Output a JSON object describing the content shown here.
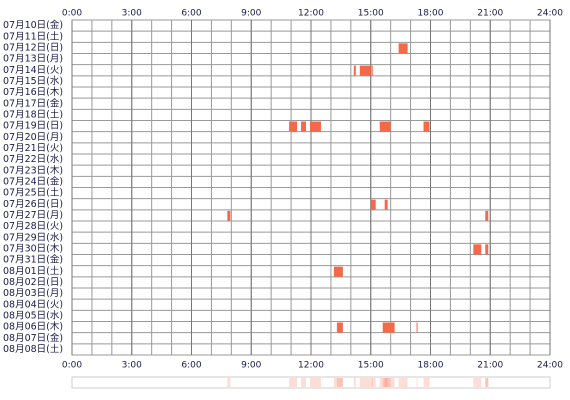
{
  "chart_data": {
    "type": "timeline",
    "categories": [
      "07月10日(金)",
      "07月11日(土)",
      "07月12日(日)",
      "07月13日(月)",
      "07月14日(火)",
      "07月15日(水)",
      "07月16日(木)",
      "07月17日(金)",
      "07月18日(土)",
      "07月19日(日)",
      "07月20日(月)",
      "07月21日(火)",
      "07月22日(水)",
      "07月23日(木)",
      "07月24日(金)",
      "07月25日(土)",
      "07月26日(日)",
      "07月27日(月)",
      "07月28日(火)",
      "07月29日(水)",
      "07月30日(木)",
      "07月31日(金)",
      "08月01日(土)",
      "08月02日(日)",
      "08月03日(月)",
      "08月04日(火)",
      "08月05日(水)",
      "08月06日(木)",
      "08月07日(金)",
      "08月08日(土)"
    ],
    "values": [
      [],
      [],
      [
        [
          16.4,
          16.85
        ]
      ],
      [],
      [
        [
          14.15,
          14.25
        ],
        [
          14.45,
          15.0
        ],
        [
          15.05,
          15.1
        ]
      ],
      [],
      [],
      [],
      [],
      [
        [
          10.9,
          11.3
        ],
        [
          11.5,
          11.75
        ],
        [
          11.95,
          12.5
        ],
        [
          15.45,
          16.0
        ],
        [
          17.65,
          17.95
        ]
      ],
      [],
      [],
      [],
      [],
      [],
      [],
      [
        [
          15.0,
          15.25
        ],
        [
          15.7,
          15.85
        ]
      ],
      [
        [
          7.8,
          7.95
        ],
        [
          20.75,
          20.9
        ]
      ],
      [],
      [],
      [
        [
          20.15,
          20.55
        ],
        [
          20.75,
          20.9
        ]
      ],
      [],
      [
        [
          13.15,
          13.6
        ]
      ],
      [],
      [],
      [],
      [],
      [
        [
          13.3,
          13.6
        ],
        [
          15.6,
          16.2
        ],
        [
          17.3,
          17.35
        ]
      ],
      [],
      []
    ],
    "color": "#f4694a",
    "xlim": [
      0,
      24
    ],
    "xticks": [
      {
        "value": 0,
        "label": "0:00"
      },
      {
        "value": 3,
        "label": "3:00"
      },
      {
        "value": 6,
        "label": "6:00"
      },
      {
        "value": 9,
        "label": "9:00"
      },
      {
        "value": 12,
        "label": "12:00"
      },
      {
        "value": 15,
        "label": "15:00"
      },
      {
        "value": 18,
        "label": "18:00"
      },
      {
        "value": 21,
        "label": "21:00"
      },
      {
        "value": 24,
        "label": "24:00"
      }
    ],
    "grid": true
  }
}
